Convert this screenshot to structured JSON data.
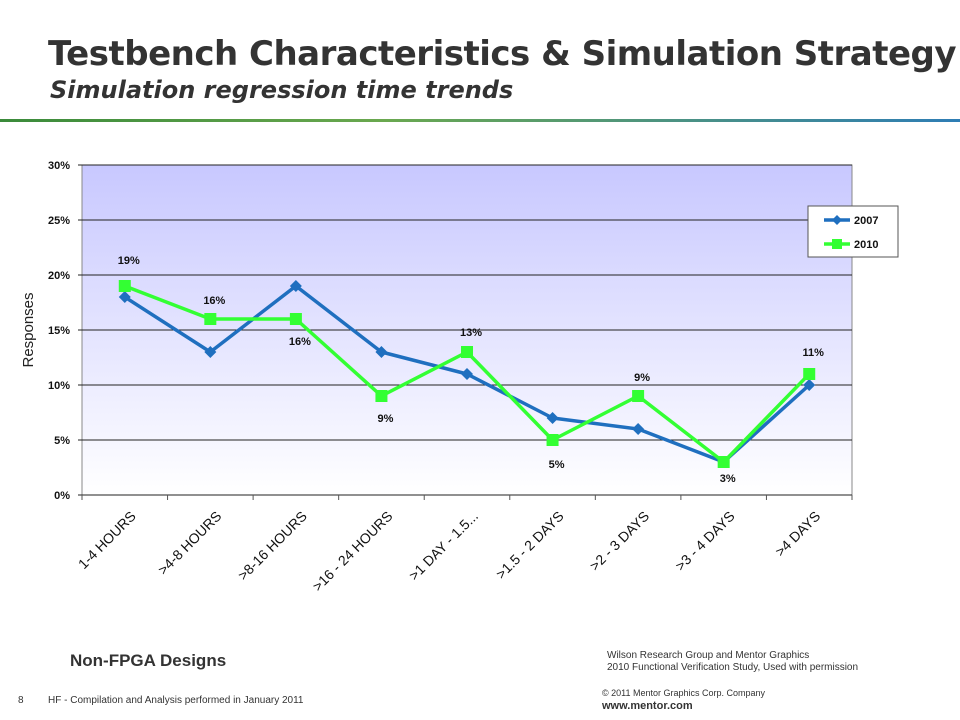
{
  "slide": {
    "title": "Testbench Characteristics & Simulation Strategy",
    "subtitle": "Simulation regression time trends",
    "note_left": "Non-FPGA Designs",
    "source_line1": "Wilson Research Group and Mentor Graphics",
    "source_line2": "2010 Functional Verification Study,  Used with permission",
    "copyright": "© 2011 Mentor Graphics Corp. Company",
    "website": "www.mentor.com",
    "slide_number": "8",
    "footnote": "HF - Compilation and Analysis performed in January 2011"
  },
  "chart_data": {
    "type": "line",
    "title": "",
    "xlabel": "",
    "ylabel": "Responses",
    "categories": [
      "1-4 HOURS",
      ">4-8 HOURS",
      ">8-16 HOURS",
      ">16 - 24 HOURS",
      ">1 DAY - 1.5...",
      ">1.5 - 2 DAYS",
      ">2 - 3 DAYS",
      ">3 - 4 DAYS",
      ">4 DAYS"
    ],
    "ylim": [
      0,
      30
    ],
    "yticks": [
      0,
      5,
      10,
      15,
      20,
      25,
      30
    ],
    "ytick_labels": [
      "0%",
      "5%",
      "10%",
      "15%",
      "20%",
      "25%",
      "30%"
    ],
    "grid": true,
    "legend_position": "top-right",
    "series": [
      {
        "name": "2007",
        "color": "#1f6fbf",
        "marker": "diamond",
        "values": [
          18,
          13,
          19,
          13,
          11,
          7,
          6,
          3,
          10
        ],
        "data_labels": []
      },
      {
        "name": "2010",
        "color": "#33ff33",
        "marker": "square",
        "values": [
          19,
          16,
          16,
          9,
          13,
          5,
          9,
          3,
          11
        ],
        "data_labels": [
          "19%",
          "16%",
          "16%",
          "9%",
          "13%",
          "5%",
          "9%",
          "3%",
          "11%"
        ]
      }
    ]
  }
}
